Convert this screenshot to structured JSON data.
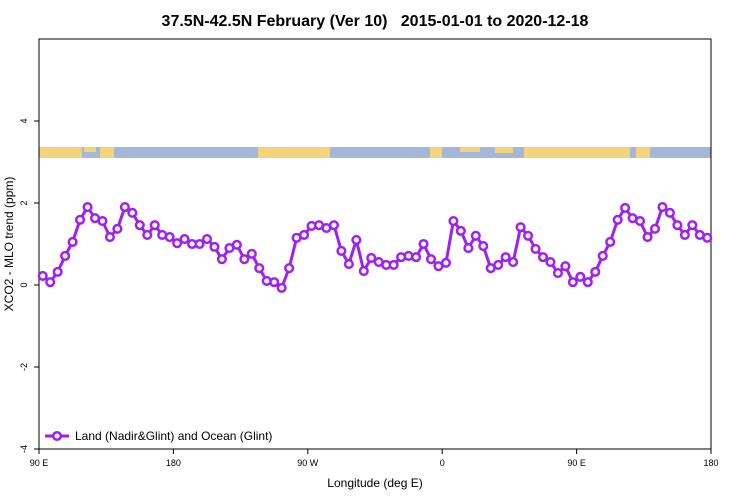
{
  "chart_data": {
    "type": "line",
    "title": "37.5N-42.5N February (Ver 10)   2015-01-01 to 2020-12-18",
    "xlabel": "Longitude (deg E)",
    "ylabel": "XCO2 - MLO trend (ppm)",
    "xlim": [
      90,
      540
    ],
    "ylim": [
      -4,
      6
    ],
    "xticks": [
      {
        "value": 90,
        "label": "90 E"
      },
      180,
      {
        "value": 270,
        "label": "90 W"
      },
      {
        "value": 360,
        "label": "0"
      },
      {
        "value": 450,
        "label": "90 E"
      },
      {
        "value": 540,
        "label": "180"
      }
    ],
    "yticks": [
      -4,
      -2,
      0,
      2,
      4
    ],
    "legend": "bottom-left",
    "x": [
      92.5,
      97.5,
      102.5,
      107.5,
      112.5,
      117.5,
      122.5,
      127.5,
      132.5,
      137.5,
      142.5,
      147.5,
      152.5,
      157.5,
      162.5,
      167.5,
      172.5,
      177.5,
      182.5,
      187.5,
      192.5,
      197.5,
      202.5,
      207.5,
      212.5,
      217.5,
      222.5,
      227.5,
      232.5,
      237.5,
      242.5,
      247.5,
      252.5,
      257.5,
      262.5,
      267.5,
      272.5,
      277.5,
      282.5,
      287.5,
      292.5,
      297.5,
      302.5,
      307.5,
      312.5,
      317.5,
      322.5,
      327.5,
      332.5,
      337.5,
      342.5,
      347.5,
      352.5,
      357.5,
      362.5,
      367.5,
      372.5,
      377.5,
      382.5,
      387.5,
      392.5,
      397.5,
      402.5,
      407.5,
      412.5,
      417.5,
      422.5,
      427.5,
      432.5,
      437.5,
      442.5,
      447.5,
      452.5,
      457.5,
      462.5,
      467.5,
      472.5,
      477.5,
      482.5,
      487.5,
      492.5,
      497.5,
      502.5,
      507.5,
      512.5,
      517.5,
      522.5,
      527.5,
      532.5,
      537.5
    ],
    "series": [
      {
        "name": "Land (Nadir&Glint) and Ocean (Glint)",
        "color": "#a020f0",
        "values": [
          0.22,
          0.07,
          0.32,
          0.71,
          1.05,
          1.59,
          1.9,
          1.63,
          1.56,
          1.17,
          1.37,
          1.9,
          1.76,
          1.46,
          1.22,
          1.46,
          1.22,
          1.17,
          1.02,
          1.12,
          1.0,
          1.0,
          1.12,
          0.93,
          0.63,
          0.9,
          0.98,
          0.63,
          0.76,
          0.41,
          0.1,
          0.07,
          -0.07,
          0.41,
          1.15,
          1.22,
          1.44,
          1.46,
          1.39,
          1.46,
          0.83,
          0.51,
          1.1,
          0.34,
          0.66,
          0.56,
          0.49,
          0.49,
          0.68,
          0.71,
          0.68,
          1.0,
          0.63,
          0.46,
          0.54,
          1.56,
          1.32,
          0.9,
          1.2,
          0.95,
          0.41,
          0.49,
          0.68,
          0.56,
          1.41,
          1.2,
          0.88,
          0.68,
          0.56,
          0.29,
          0.46,
          0.07,
          0.2,
          0.07,
          0.32,
          0.71,
          1.05,
          1.59,
          1.88,
          1.63,
          1.56,
          1.17,
          1.37,
          1.9,
          1.76,
          1.46,
          1.22,
          1.46,
          1.22,
          1.15
        ]
      }
    ]
  }
}
